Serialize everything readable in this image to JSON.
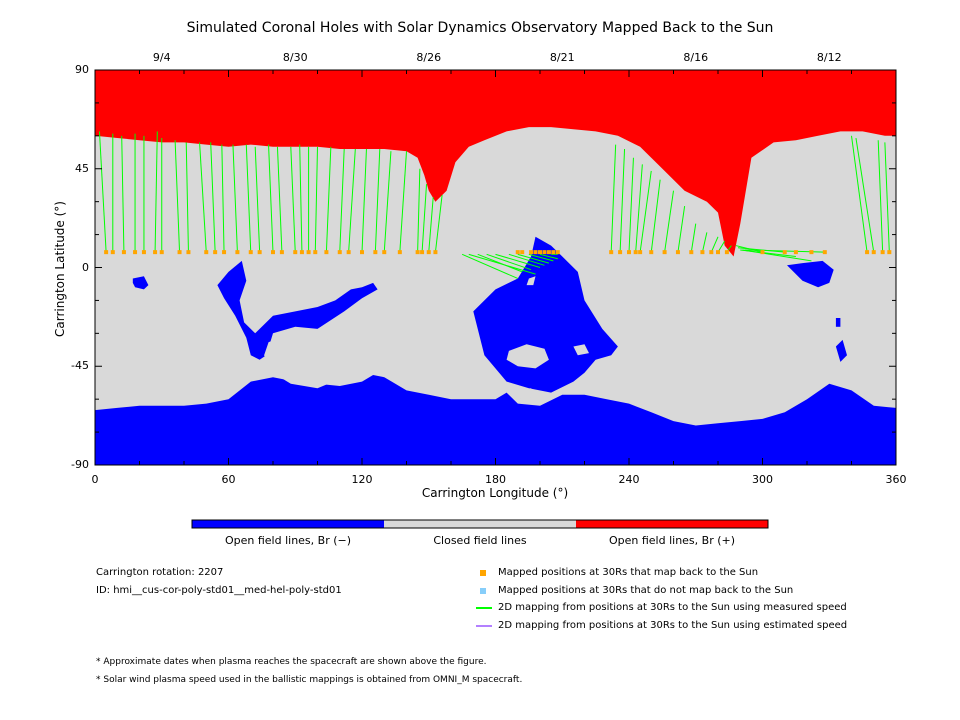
{
  "title": "Simulated Coronal Holes with Solar Dynamics Observatory Mapped Back to the Sun",
  "axes": {
    "xlabel": "Carrington Longitude (°)",
    "ylabel": "Carrington Latitude (°)",
    "x_ticks": [
      "0",
      "60",
      "120",
      "180",
      "240",
      "300",
      "360"
    ],
    "y_ticks": [
      "90",
      "45",
      "0",
      "-45",
      "-90"
    ],
    "xlim": [
      0,
      360
    ],
    "ylim": [
      -90,
      90
    ]
  },
  "date_ticks": [
    {
      "label": "9/4",
      "lon": 30
    },
    {
      "label": "8/30",
      "lon": 90
    },
    {
      "label": "8/26",
      "lon": 150
    },
    {
      "label": "8/21",
      "lon": 210
    },
    {
      "label": "8/16",
      "lon": 270
    },
    {
      "label": "8/12",
      "lon": 330
    }
  ],
  "colorbar": {
    "labels": [
      "Open field lines, Br (−)",
      "Closed field lines",
      "Open field lines, Br (+)"
    ],
    "colors": [
      "#0000ff",
      "#d9d9d9",
      "#ff0000"
    ]
  },
  "info": {
    "rotation": "Carrington rotation: 2207",
    "id": "ID: hmi__cus-cor-poly-std01__med-hel-poly-std01"
  },
  "legend": [
    {
      "label": "Mapped positions at 30Rs that map back to the Sun",
      "kind": "square",
      "color": "#ffa500"
    },
    {
      "label": "Mapped positions at 30Rs that do not map back to the Sun",
      "kind": "square",
      "color": "#87cefa"
    },
    {
      "label": "2D mapping from positions at 30Rs to the Sun using measured speed",
      "kind": "line",
      "color": "#00ff00"
    },
    {
      "label": "2D mapping from positions at 30Rs to the Sun using estimated speed",
      "kind": "line",
      "color": "#b380ff"
    }
  ],
  "footnotes": [
    "* Approximate dates when plasma reaches the spacecraft are shown above the figure.",
    "* Solar wind plasma speed used in the ballistic mappings is obtained from OMNI_M spacecraft."
  ],
  "map_data": {
    "footpoint_lat": 7,
    "north_hole_boundary": [
      [
        0,
        60
      ],
      [
        10,
        59
      ],
      [
        20,
        58
      ],
      [
        30,
        57
      ],
      [
        40,
        57
      ],
      [
        50,
        56
      ],
      [
        60,
        55
      ],
      [
        70,
        56
      ],
      [
        80,
        55
      ],
      [
        90,
        55
      ],
      [
        100,
        55
      ],
      [
        110,
        54
      ],
      [
        120,
        54
      ],
      [
        130,
        54
      ],
      [
        140,
        53
      ],
      [
        145,
        50
      ],
      [
        148,
        42
      ],
      [
        150,
        35
      ],
      [
        153,
        30
      ],
      [
        158,
        35
      ],
      [
        162,
        48
      ],
      [
        168,
        55
      ],
      [
        175,
        58
      ],
      [
        185,
        62
      ],
      [
        195,
        64
      ],
      [
        205,
        64
      ],
      [
        215,
        63
      ],
      [
        225,
        62
      ],
      [
        235,
        60
      ],
      [
        245,
        55
      ],
      [
        255,
        45
      ],
      [
        265,
        35
      ],
      [
        275,
        30
      ],
      [
        280,
        25
      ],
      [
        283,
        10
      ],
      [
        287,
        5
      ],
      [
        290,
        20
      ],
      [
        295,
        50
      ],
      [
        305,
        57
      ],
      [
        315,
        58
      ],
      [
        325,
        60
      ],
      [
        335,
        62
      ],
      [
        345,
        62
      ],
      [
        355,
        60
      ],
      [
        360,
        60
      ]
    ],
    "south_hole_boundary": [
      [
        0,
        -65
      ],
      [
        10,
        -64
      ],
      [
        20,
        -63
      ],
      [
        30,
        -63
      ],
      [
        40,
        -63
      ],
      [
        50,
        -62
      ],
      [
        60,
        -60
      ],
      [
        70,
        -52
      ],
      [
        80,
        -50
      ],
      [
        90,
        -52
      ],
      [
        100,
        -53
      ],
      [
        110,
        -54
      ],
      [
        120,
        -52
      ],
      [
        125,
        -49
      ],
      [
        130,
        -50
      ],
      [
        140,
        -56
      ],
      [
        150,
        -58
      ],
      [
        160,
        -60
      ],
      [
        170,
        -60
      ],
      [
        180,
        -60
      ],
      [
        185,
        -57
      ],
      [
        190,
        -62
      ],
      [
        200,
        -63
      ],
      [
        210,
        -58
      ],
      [
        220,
        -58
      ],
      [
        230,
        -60
      ],
      [
        240,
        -62
      ],
      [
        250,
        -66
      ],
      [
        260,
        -70
      ],
      [
        270,
        -72
      ],
      [
        280,
        -71
      ],
      [
        290,
        -70
      ],
      [
        300,
        -69
      ],
      [
        310,
        -66
      ],
      [
        320,
        -60
      ],
      [
        330,
        -53
      ],
      [
        340,
        -56
      ],
      [
        350,
        -63
      ],
      [
        360,
        -64
      ]
    ],
    "blue_patches": [
      [
        [
          17,
          -5
        ],
        [
          22,
          -4
        ],
        [
          24,
          -8
        ],
        [
          22,
          -10
        ],
        [
          18,
          -9
        ],
        [
          17,
          -7
        ]
      ],
      [
        [
          55,
          -8
        ],
        [
          60,
          -2
        ],
        [
          66,
          3
        ],
        [
          68,
          -6
        ],
        [
          65,
          -15
        ],
        [
          67,
          -25
        ],
        [
          72,
          -30
        ],
        [
          80,
          -22
        ],
        [
          90,
          -20
        ],
        [
          100,
          -18
        ],
        [
          108,
          -15
        ],
        [
          115,
          -10
        ],
        [
          120,
          -9
        ],
        [
          125,
          -7
        ],
        [
          127,
          -10
        ],
        [
          120,
          -14
        ],
        [
          112,
          -20
        ],
        [
          100,
          -28
        ],
        [
          90,
          -27
        ],
        [
          80,
          -30
        ],
        [
          77,
          -40
        ],
        [
          74,
          -42
        ],
        [
          70,
          -40
        ],
        [
          68,
          -32
        ],
        [
          63,
          -22
        ],
        [
          58,
          -14
        ]
      ],
      [
        [
          170,
          -20
        ],
        [
          180,
          -10
        ],
        [
          190,
          -5
        ],
        [
          196,
          5
        ],
        [
          198,
          14
        ],
        [
          205,
          10
        ],
        [
          210,
          5
        ],
        [
          217,
          -2
        ],
        [
          220,
          -15
        ],
        [
          228,
          -28
        ],
        [
          235,
          -36
        ],
        [
          232,
          -40
        ],
        [
          225,
          -42
        ],
        [
          220,
          -48
        ],
        [
          215,
          -52
        ],
        [
          205,
          -57
        ],
        [
          195,
          -55
        ],
        [
          185,
          -52
        ],
        [
          175,
          -40
        ]
      ],
      [
        [
          311,
          1
        ],
        [
          318,
          2
        ],
        [
          327,
          3
        ],
        [
          332,
          -1
        ],
        [
          330,
          -7
        ],
        [
          325,
          -9
        ],
        [
          318,
          -6
        ]
      ],
      [
        [
          333,
          -36
        ],
        [
          336,
          -33
        ],
        [
          338,
          -40
        ],
        [
          335,
          -43
        ]
      ],
      [
        [
          333,
          -23
        ],
        [
          335,
          -23
        ],
        [
          335,
          -27
        ],
        [
          333,
          -27
        ]
      ]
    ],
    "grey_holes": [
      [
        [
          78,
          -34
        ],
        [
          90,
          -30
        ],
        [
          100,
          -31
        ],
        [
          110,
          -35
        ],
        [
          115,
          -42
        ],
        [
          112,
          -50
        ],
        [
          100,
          -55
        ],
        [
          88,
          -53
        ],
        [
          80,
          -48
        ],
        [
          76,
          -40
        ]
      ],
      [
        [
          186,
          -38
        ],
        [
          194,
          -35
        ],
        [
          202,
          -37
        ],
        [
          204,
          -42
        ],
        [
          198,
          -46
        ],
        [
          190,
          -45
        ],
        [
          185,
          -42
        ]
      ],
      [
        [
          188,
          -56
        ],
        [
          196,
          -55
        ],
        [
          198,
          -59
        ],
        [
          190,
          -60
        ]
      ],
      [
        [
          215,
          -36
        ],
        [
          220,
          -35
        ],
        [
          222,
          -39
        ],
        [
          217,
          -40
        ]
      ],
      [
        [
          195,
          -5
        ],
        [
          198,
          -4
        ],
        [
          197,
          -8
        ],
        [
          194,
          -8
        ]
      ]
    ],
    "measured_links": [
      [
        [
          2,
          62
        ],
        [
          5,
          7
        ]
      ],
      [
        [
          8,
          61
        ],
        [
          8,
          7
        ]
      ],
      [
        [
          12,
          60
        ],
        [
          13,
          7
        ]
      ],
      [
        [
          18,
          61
        ],
        [
          18,
          7
        ]
      ],
      [
        [
          22,
          60
        ],
        [
          22,
          7
        ]
      ],
      [
        [
          28,
          62
        ],
        [
          27,
          7
        ]
      ],
      [
        [
          30,
          59
        ],
        [
          30,
          7
        ]
      ],
      [
        [
          36,
          58
        ],
        [
          38,
          7
        ]
      ],
      [
        [
          41,
          57
        ],
        [
          42,
          7
        ]
      ],
      [
        [
          47,
          57
        ],
        [
          50,
          7
        ]
      ],
      [
        [
          52,
          57
        ],
        [
          54,
          7
        ]
      ],
      [
        [
          57,
          56
        ],
        [
          58,
          7
        ]
      ],
      [
        [
          62,
          56
        ],
        [
          64,
          7
        ]
      ],
      [
        [
          68,
          56
        ],
        [
          70,
          7
        ]
      ],
      [
        [
          72,
          55
        ],
        [
          74,
          7
        ]
      ],
      [
        [
          78,
          56
        ],
        [
          80,
          7
        ]
      ],
      [
        [
          82,
          55
        ],
        [
          84,
          7
        ]
      ],
      [
        [
          88,
          55
        ],
        [
          90,
          7
        ]
      ],
      [
        [
          92,
          56
        ],
        [
          93,
          7
        ]
      ],
      [
        [
          96,
          55
        ],
        [
          96,
          7
        ]
      ],
      [
        [
          100,
          55
        ],
        [
          99,
          7
        ]
      ],
      [
        [
          106,
          55
        ],
        [
          104,
          7
        ]
      ],
      [
        [
          112,
          54
        ],
        [
          110,
          7
        ]
      ],
      [
        [
          117,
          54
        ],
        [
          114,
          7
        ]
      ],
      [
        [
          122,
          54
        ],
        [
          120,
          7
        ]
      ],
      [
        [
          128,
          54
        ],
        [
          126,
          7
        ]
      ],
      [
        [
          133,
          53
        ],
        [
          130,
          7
        ]
      ],
      [
        [
          140,
          53
        ],
        [
          137,
          7
        ]
      ],
      [
        [
          146,
          45
        ],
        [
          145,
          7
        ]
      ],
      [
        [
          149,
          38
        ],
        [
          147,
          7
        ]
      ],
      [
        [
          152,
          32
        ],
        [
          150,
          7
        ]
      ],
      [
        [
          156,
          33
        ],
        [
          153,
          7
        ]
      ],
      [
        [
          165,
          6
        ],
        [
          190,
          -5
        ]
      ],
      [
        [
          168,
          6
        ],
        [
          198,
          -3
        ]
      ],
      [
        [
          172,
          6
        ],
        [
          192,
          -2
        ]
      ],
      [
        [
          176,
          6
        ],
        [
          196,
          -1
        ]
      ],
      [
        [
          180,
          6
        ],
        [
          200,
          0
        ]
      ],
      [
        [
          186,
          6
        ],
        [
          202,
          1
        ]
      ],
      [
        [
          190,
          6
        ],
        [
          204,
          2
        ]
      ],
      [
        [
          195,
          6
        ],
        [
          206,
          3
        ]
      ],
      [
        [
          200,
          6
        ],
        [
          208,
          4
        ]
      ],
      [
        [
          205,
          6
        ],
        [
          208,
          6
        ]
      ],
      [
        [
          234,
          56
        ],
        [
          232,
          7
        ]
      ],
      [
        [
          238,
          54
        ],
        [
          236,
          7
        ]
      ],
      [
        [
          242,
          50
        ],
        [
          240,
          7
        ]
      ],
      [
        [
          246,
          47
        ],
        [
          243,
          7
        ]
      ],
      [
        [
          250,
          44
        ],
        [
          245,
          7
        ]
      ],
      [
        [
          254,
          40
        ],
        [
          250,
          7
        ]
      ],
      [
        [
          260,
          35
        ],
        [
          256,
          7
        ]
      ],
      [
        [
          265,
          28
        ],
        [
          262,
          7
        ]
      ],
      [
        [
          270,
          20
        ],
        [
          268,
          7
        ]
      ],
      [
        [
          275,
          16
        ],
        [
          273,
          7
        ]
      ],
      [
        [
          280,
          14
        ],
        [
          277,
          7
        ]
      ],
      [
        [
          283,
          12
        ],
        [
          280,
          7
        ]
      ],
      [
        [
          286,
          10
        ],
        [
          284,
          7
        ]
      ],
      [
        [
          288,
          10
        ],
        [
          300,
          7
        ]
      ],
      [
        [
          289,
          9
        ],
        [
          310,
          7
        ]
      ],
      [
        [
          290,
          8
        ],
        [
          315,
          5
        ]
      ],
      [
        [
          291,
          8
        ],
        [
          322,
          3
        ]
      ],
      [
        [
          292,
          8
        ],
        [
          328,
          7
        ]
      ],
      [
        [
          340,
          60
        ],
        [
          347,
          7
        ]
      ],
      [
        [
          342,
          59
        ],
        [
          350,
          7
        ]
      ],
      [
        [
          352,
          58
        ],
        [
          354,
          7
        ]
      ],
      [
        [
          355,
          57
        ],
        [
          357,
          7
        ]
      ]
    ]
  }
}
